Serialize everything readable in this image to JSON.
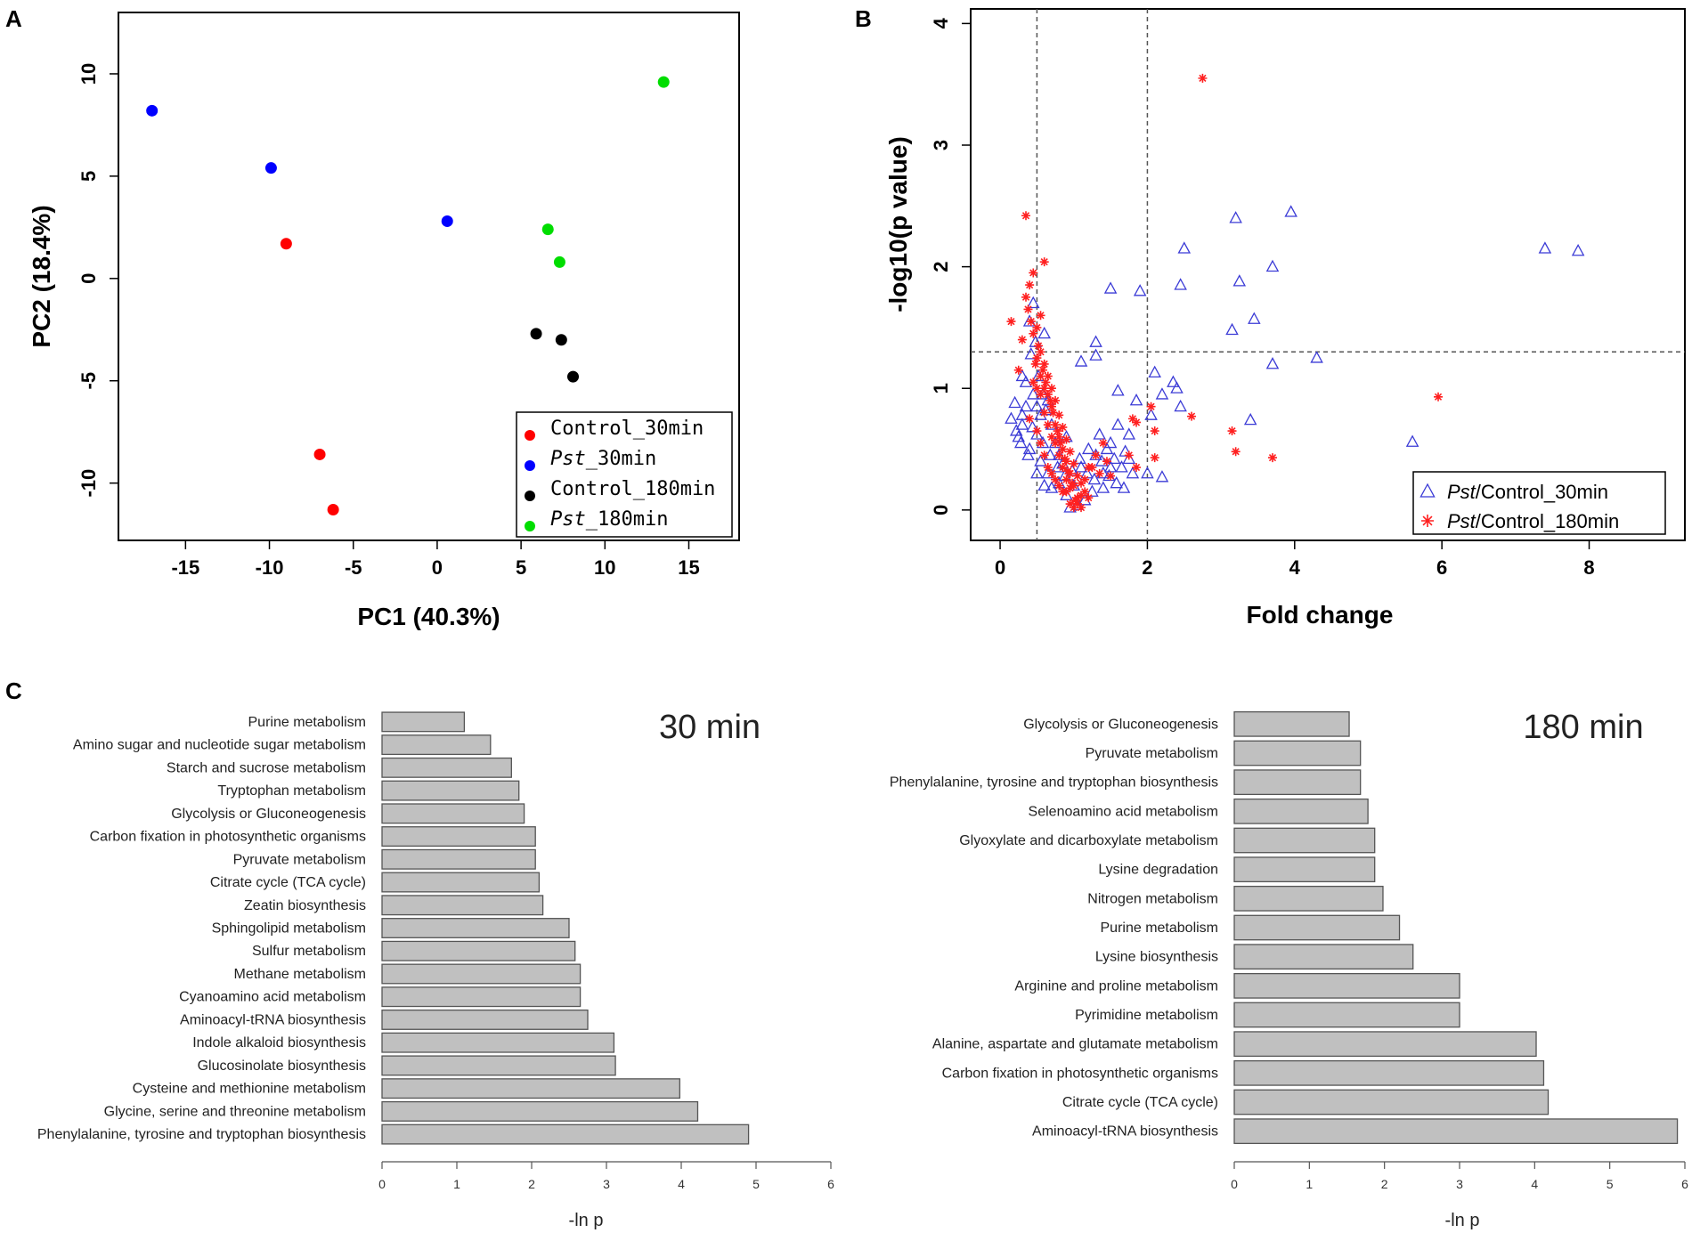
{
  "chart_data": [
    {
      "panel": "A",
      "type": "scatter",
      "title": "",
      "xlabel": "PC1 (40.3%)",
      "ylabel": "PC2 (18.4%)",
      "xlim": [
        -19,
        18
      ],
      "ylim": [
        -12.8,
        13
      ],
      "xticks": [
        -15,
        -10,
        -5,
        0,
        5,
        10,
        15
      ],
      "yticks": [
        -10,
        -5,
        0,
        5,
        10
      ],
      "legend_position": "bottom-right",
      "series": [
        {
          "name": "Control_30min",
          "legend_prefix": "",
          "legend_suffix": "Control_30min",
          "color": "#ff0000",
          "points": [
            [
              -9,
              1.7
            ],
            [
              -7,
              -8.6
            ],
            [
              -6.2,
              -11.3
            ]
          ]
        },
        {
          "name": "Pst_30min",
          "legend_prefix": "Pst",
          "legend_suffix": "_30min",
          "color": "#0000ff",
          "points": [
            [
              -17,
              8.2
            ],
            [
              -9.9,
              5.4
            ],
            [
              0.6,
              2.8
            ]
          ]
        },
        {
          "name": "Control_180min",
          "legend_prefix": "",
          "legend_suffix": "Control_180min",
          "color": "#000000",
          "points": [
            [
              5.9,
              -2.7
            ],
            [
              7.4,
              -3.0
            ],
            [
              8.1,
              -4.8
            ]
          ]
        },
        {
          "name": "Pst_180min",
          "legend_prefix": "Pst",
          "legend_suffix": "_180min",
          "color": "#00dd00",
          "points": [
            [
              13.5,
              9.6
            ],
            [
              6.6,
              2.4
            ],
            [
              7.3,
              0.8
            ]
          ]
        }
      ]
    },
    {
      "panel": "B",
      "type": "scatter",
      "title": "",
      "xlabel": "Fold change",
      "ylabel": "-log10(p value)",
      "xlim": [
        -0.4,
        9.3
      ],
      "ylim": [
        -0.25,
        4.12
      ],
      "xticks": [
        0,
        2,
        4,
        6,
        8
      ],
      "yticks": [
        0,
        1,
        2,
        3,
        4
      ],
      "threshold_lines": {
        "vertical": [
          0.5,
          2
        ],
        "horizontal": [
          1.3
        ]
      },
      "legend_position": "bottom-right",
      "series": [
        {
          "name": "Pst/Control_30min",
          "legend_prefix": "Pst",
          "legend_suffix": "/Control_30min",
          "marker": "triangle",
          "color": "#3b3bd6",
          "points": [
            [
              3.2,
              2.4
            ],
            [
              3.95,
              2.45
            ],
            [
              7.4,
              2.15
            ],
            [
              7.85,
              2.13
            ],
            [
              2.5,
              2.15
            ],
            [
              3.7,
              2.0
            ],
            [
              3.25,
              1.88
            ],
            [
              2.45,
              1.85
            ],
            [
              1.5,
              1.82
            ],
            [
              1.9,
              1.8
            ],
            [
              3.45,
              1.57
            ],
            [
              3.15,
              1.48
            ],
            [
              4.3,
              1.25
            ],
            [
              3.7,
              1.2
            ],
            [
              1.3,
              1.38
            ],
            [
              1.3,
              1.27
            ],
            [
              1.1,
              1.22
            ],
            [
              0.6,
              1.45
            ],
            [
              0.45,
              1.7
            ],
            [
              0.4,
              1.55
            ],
            [
              0.3,
              1.1
            ],
            [
              0.2,
              0.88
            ],
            [
              0.3,
              0.7
            ],
            [
              0.5,
              0.62
            ],
            [
              0.4,
              0.5
            ],
            [
              0.55,
              0.4
            ],
            [
              0.65,
              0.3
            ],
            [
              0.6,
              0.2
            ],
            [
              0.8,
              0.45
            ],
            [
              0.9,
              0.6
            ],
            [
              1.2,
              0.5
            ],
            [
              1.3,
              0.45
            ],
            [
              1.4,
              0.3
            ],
            [
              1.5,
              0.55
            ],
            [
              1.6,
              0.7
            ],
            [
              1.75,
              0.62
            ],
            [
              2.1,
              1.13
            ],
            [
              2.2,
              0.95
            ],
            [
              2.35,
              1.05
            ],
            [
              2.4,
              1.0
            ],
            [
              2.45,
              0.85
            ],
            [
              2.05,
              0.78
            ],
            [
              1.85,
              0.9
            ],
            [
              1.6,
              0.98
            ],
            [
              1.75,
              0.42
            ],
            [
              2.0,
              0.3
            ],
            [
              2.2,
              0.27
            ],
            [
              1.5,
              0.35
            ],
            [
              1.4,
              0.18
            ],
            [
              1.25,
              0.15
            ],
            [
              1.15,
              0.08
            ],
            [
              1.05,
              0.04
            ],
            [
              0.95,
              0.02
            ],
            [
              0.9,
              0.12
            ],
            [
              0.8,
              0.22
            ],
            [
              0.7,
              0.18
            ],
            [
              0.5,
              0.3
            ],
            [
              0.45,
              0.95
            ],
            [
              0.35,
              0.85
            ],
            [
              0.55,
              0.78
            ],
            [
              0.65,
              0.9
            ],
            [
              0.75,
              0.55
            ],
            [
              0.85,
              0.38
            ],
            [
              1.1,
              0.35
            ],
            [
              1.0,
              0.2
            ],
            [
              3.4,
              0.74
            ],
            [
              5.6,
              0.56
            ],
            [
              0.25,
              0.6
            ],
            [
              0.3,
              0.78
            ],
            [
              0.35,
              1.05
            ],
            [
              0.42,
              1.28
            ],
            [
              0.48,
              1.38
            ],
            [
              0.52,
              1.1
            ],
            [
              0.58,
              0.95
            ],
            [
              0.62,
              0.82
            ],
            [
              0.7,
              0.7
            ],
            [
              1.35,
              0.62
            ],
            [
              1.45,
              0.5
            ],
            [
              1.55,
              0.42
            ],
            [
              1.65,
              0.35
            ],
            [
              1.7,
              0.48
            ],
            [
              1.8,
              0.3
            ],
            [
              0.15,
              0.75
            ],
            [
              0.22,
              0.65
            ],
            [
              0.28,
              0.55
            ],
            [
              0.38,
              0.45
            ],
            [
              0.44,
              0.68
            ],
            [
              0.5,
              0.85
            ],
            [
              0.58,
              0.55
            ],
            [
              0.68,
              0.45
            ],
            [
              0.78,
              0.35
            ],
            [
              0.88,
              0.28
            ],
            [
              0.98,
              0.32
            ],
            [
              1.08,
              0.42
            ],
            [
              1.18,
              0.3
            ],
            [
              1.28,
              0.25
            ],
            [
              1.38,
              0.4
            ],
            [
              1.48,
              0.28
            ],
            [
              1.58,
              0.22
            ],
            [
              1.68,
              0.18
            ]
          ]
        },
        {
          "name": "Pst/Control_180min",
          "legend_prefix": "Pst",
          "legend_suffix": "/Control_180min",
          "marker": "asterisk",
          "color": "#ff2020",
          "points": [
            [
              2.75,
              3.55
            ],
            [
              0.35,
              2.42
            ],
            [
              0.6,
              2.04
            ],
            [
              0.45,
              1.95
            ],
            [
              0.4,
              1.85
            ],
            [
              0.35,
              1.75
            ],
            [
              0.55,
              1.6
            ],
            [
              0.15,
              1.55
            ],
            [
              0.3,
              1.4
            ],
            [
              0.45,
              1.45
            ],
            [
              0.25,
              1.15
            ],
            [
              0.5,
              1.25
            ],
            [
              0.55,
              1.1
            ],
            [
              0.6,
              1.0
            ],
            [
              0.65,
              0.95
            ],
            [
              0.7,
              0.85
            ],
            [
              0.75,
              0.7
            ],
            [
              0.8,
              0.6
            ],
            [
              0.85,
              0.5
            ],
            [
              0.9,
              0.4
            ],
            [
              0.95,
              0.3
            ],
            [
              1.0,
              0.2
            ],
            [
              1.05,
              0.1
            ],
            [
              1.0,
              0.02
            ],
            [
              0.95,
              0.05
            ],
            [
              0.9,
              0.15
            ],
            [
              1.1,
              0.12
            ],
            [
              1.15,
              0.25
            ],
            [
              1.2,
              0.35
            ],
            [
              1.3,
              0.45
            ],
            [
              1.4,
              0.55
            ],
            [
              0.4,
              0.75
            ],
            [
              0.5,
              0.65
            ],
            [
              0.55,
              0.55
            ],
            [
              0.6,
              0.45
            ],
            [
              0.65,
              0.35
            ],
            [
              0.7,
              0.3
            ],
            [
              0.75,
              0.25
            ],
            [
              0.8,
              0.2
            ],
            [
              0.85,
              0.15
            ],
            [
              2.6,
              0.77
            ],
            [
              2.05,
              0.85
            ],
            [
              2.1,
              0.65
            ],
            [
              1.8,
              0.75
            ],
            [
              1.85,
              0.72
            ],
            [
              2.1,
              0.43
            ],
            [
              1.75,
              0.45
            ],
            [
              1.85,
              0.35
            ],
            [
              5.95,
              0.93
            ],
            [
              3.15,
              0.65
            ],
            [
              3.2,
              0.48
            ],
            [
              3.7,
              0.43
            ],
            [
              0.45,
              1.05
            ],
            [
              0.5,
              1.0
            ],
            [
              0.55,
              0.95
            ],
            [
              0.6,
              0.8
            ],
            [
              0.65,
              0.7
            ],
            [
              0.7,
              0.6
            ],
            [
              0.75,
              0.55
            ],
            [
              0.8,
              0.45
            ],
            [
              0.85,
              0.35
            ],
            [
              0.9,
              0.25
            ],
            [
              0.95,
              0.18
            ],
            [
              1.05,
              0.05
            ],
            [
              1.1,
              0.02
            ],
            [
              0.52,
              1.35
            ],
            [
              0.48,
              1.2
            ],
            [
              0.58,
              1.15
            ],
            [
              0.62,
              1.05
            ],
            [
              0.68,
              0.9
            ],
            [
              0.72,
              0.8
            ],
            [
              0.78,
              0.65
            ],
            [
              0.82,
              0.55
            ],
            [
              0.88,
              0.42
            ],
            [
              0.92,
              0.32
            ],
            [
              0.98,
              0.22
            ],
            [
              1.02,
              0.08
            ],
            [
              1.25,
              0.35
            ],
            [
              1.35,
              0.3
            ],
            [
              1.45,
              0.4
            ],
            [
              1.5,
              0.28
            ],
            [
              0.38,
              1.65
            ],
            [
              0.42,
              1.55
            ],
            [
              0.5,
              1.5
            ],
            [
              0.55,
              1.3
            ],
            [
              0.6,
              1.2
            ],
            [
              0.65,
              1.1
            ],
            [
              0.7,
              1.0
            ],
            [
              0.75,
              0.9
            ],
            [
              0.8,
              0.78
            ],
            [
              0.85,
              0.68
            ],
            [
              0.9,
              0.58
            ],
            [
              0.95,
              0.48
            ],
            [
              1.0,
              0.38
            ],
            [
              1.05,
              0.28
            ],
            [
              1.1,
              0.22
            ],
            [
              1.15,
              0.15
            ],
            [
              1.2,
              0.1
            ]
          ]
        }
      ]
    },
    {
      "panel": "C",
      "type": "bar",
      "orientation": "horizontal",
      "title": "30 min",
      "xlabel": "-ln p",
      "ylabel": "",
      "xlim": [
        0,
        6
      ],
      "xticks": [
        0,
        1,
        2,
        3,
        4,
        5,
        6
      ],
      "bar_color": "#c0c0c0",
      "categories": [
        "Purine metabolism",
        "Amino sugar and nucleotide sugar metabolism",
        "Starch and sucrose metabolism",
        "Tryptophan metabolism",
        "Glycolysis or Gluconeogenesis",
        "Carbon fixation in photosynthetic organisms",
        "Pyruvate metabolism",
        "Citrate cycle (TCA cycle)",
        "Zeatin biosynthesis",
        "Sphingolipid metabolism",
        "Sulfur metabolism",
        "Methane metabolism",
        "Cyanoamino acid metabolism",
        "Aminoacyl-tRNA biosynthesis",
        "Indole alkaloid biosynthesis",
        "Glucosinolate biosynthesis",
        "Cysteine and methionine metabolism",
        "Glycine, serine and threonine metabolism",
        "Phenylalanine, tyrosine and tryptophan biosynthesis"
      ],
      "values": [
        1.1,
        1.45,
        1.73,
        1.83,
        1.9,
        2.05,
        2.05,
        2.1,
        2.15,
        2.5,
        2.58,
        2.65,
        2.65,
        2.75,
        3.1,
        3.12,
        3.98,
        4.22,
        4.9
      ]
    },
    {
      "panel": "C",
      "type": "bar",
      "orientation": "horizontal",
      "title": "180 min",
      "xlabel": "-ln p",
      "ylabel": "",
      "xlim": [
        0,
        6
      ],
      "xticks": [
        0,
        1,
        2,
        3,
        4,
        5,
        6
      ],
      "bar_color": "#c0c0c0",
      "categories": [
        "Glycolysis or Gluconeogenesis",
        "Pyruvate metabolism",
        "Phenylalanine, tyrosine and tryptophan biosynthesis",
        "Selenoamino acid metabolism",
        "Glyoxylate and dicarboxylate metabolism",
        "Lysine degradation",
        "Nitrogen metabolism",
        "Purine metabolism",
        "Lysine biosynthesis",
        "Arginine and proline metabolism",
        "Pyrimidine metabolism",
        "Alanine, aspartate and glutamate metabolism",
        "Carbon fixation in photosynthetic organisms",
        "Citrate cycle (TCA cycle)",
        "Aminoacyl-tRNA biosynthesis"
      ],
      "values": [
        1.53,
        1.68,
        1.68,
        1.78,
        1.87,
        1.87,
        1.98,
        2.2,
        2.38,
        3.0,
        3.0,
        4.02,
        4.12,
        4.18,
        5.9
      ]
    }
  ],
  "panel_labels": {
    "a": "A",
    "b": "B",
    "c": "C"
  }
}
